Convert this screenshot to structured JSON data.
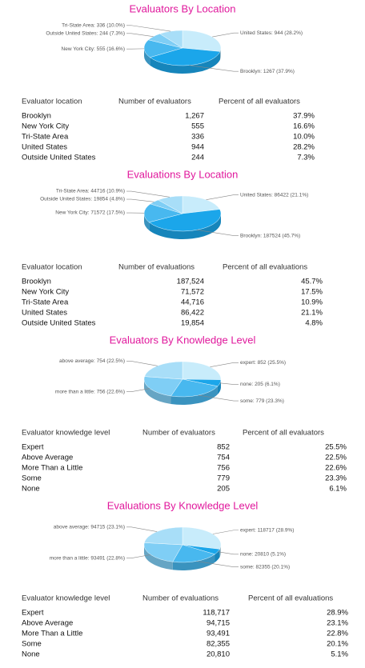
{
  "chart_data": [
    {
      "type": "pie",
      "title": "Evaluators By Location",
      "values": [
        944,
        1267,
        555,
        244,
        336
      ],
      "value_labels": [
        "United States: 944 (28.2%)",
        "Brooklyn: 1267 (37.9%)",
        "New York City: 555 (16.6%)",
        "Outside United States: 244 (7.3%)",
        "Tri-State Area: 336 (10.0%)"
      ],
      "colors": [
        "#c8ecfb",
        "#1ba6ea",
        "#48b8ef",
        "#7fcef5",
        "#a8def8"
      ]
    },
    {
      "type": "pie",
      "title": "Evaluations By Location",
      "values": [
        86422,
        187524,
        71572,
        19854,
        44716
      ],
      "value_labels": [
        "United States: 86422 (21.1%)",
        "Brooklyn: 187524 (45.7%)",
        "New York City: 71572 (17.5%)",
        "Outside United States: 19854 (4.8%)",
        "Tri-State Area: 44716 (10.9%)"
      ],
      "colors": [
        "#c8ecfb",
        "#1ba6ea",
        "#48b8ef",
        "#7fcef5",
        "#a8def8"
      ]
    },
    {
      "type": "pie",
      "title": "Evaluators By Knowledge Level",
      "values": [
        852,
        205,
        779,
        756,
        754
      ],
      "value_labels": [
        "expert: 852 (25.5%)",
        "none: 205 (6.1%)",
        "some: 779 (23.3%)",
        "more than a little: 756 (22.6%)",
        "above average: 754 (22.5%)"
      ],
      "colors": [
        "#c8ecfb",
        "#1ba6ea",
        "#48b8ef",
        "#7fcef5",
        "#a8def8"
      ]
    },
    {
      "type": "pie",
      "title": "Evaluations By Knowledge Level",
      "values": [
        118717,
        20810,
        82355,
        93491,
        94715
      ],
      "value_labels": [
        "expert: 118717 (28.9%)",
        "none: 20810 (5.1%)",
        "some: 82355 (20.1%)",
        "more than a little: 93491 (22.8%)",
        "above average: 94715 (23.1%)"
      ],
      "colors": [
        "#c8ecfb",
        "#1ba6ea",
        "#48b8ef",
        "#7fcef5",
        "#a8def8"
      ]
    }
  ],
  "tables": [
    {
      "columns": [
        "Evaluator location",
        "Number of evaluators",
        "Percent of all evaluators"
      ],
      "rows": [
        [
          "Brooklyn",
          "1,267",
          "37.9%"
        ],
        [
          "New York City",
          "555",
          "16.6%"
        ],
        [
          "Tri-State Area",
          "336",
          "10.0%"
        ],
        [
          "United States",
          "944",
          "28.2%"
        ],
        [
          "Outside United States",
          "244",
          "7.3%"
        ]
      ]
    },
    {
      "columns": [
        "Evaluator location",
        "Number of evaluations",
        "Percent of all evaluations"
      ],
      "rows": [
        [
          "Brooklyn",
          "187,524",
          "45.7%"
        ],
        [
          "New York City",
          "71,572",
          "17.5%"
        ],
        [
          "Tri-State Area",
          "44,716",
          "10.9%"
        ],
        [
          "United States",
          "86,422",
          "21.1%"
        ],
        [
          "Outside United States",
          "19,854",
          "4.8%"
        ]
      ]
    },
    {
      "columns": [
        "Evaluator knowledge level",
        "Number of evaluators",
        "Percent of all evaluators"
      ],
      "rows": [
        [
          "Expert",
          "852",
          "25.5%"
        ],
        [
          "Above Average",
          "754",
          "22.5%"
        ],
        [
          "More Than a Little",
          "756",
          "22.6%"
        ],
        [
          "Some",
          "779",
          "23.3%"
        ],
        [
          "None",
          "205",
          "6.1%"
        ]
      ]
    },
    {
      "columns": [
        "Evaluator knowledge level",
        "Number of evaluations",
        "Percent of all evaluations"
      ],
      "rows": [
        [
          "Expert",
          "118,717",
          "28.9%"
        ],
        [
          "Above Average",
          "94,715",
          "23.1%"
        ],
        [
          "More Than a Little",
          "93,491",
          "22.8%"
        ],
        [
          "Some",
          "82,355",
          "20.1%"
        ],
        [
          "None",
          "20,810",
          "5.1%"
        ]
      ]
    }
  ]
}
